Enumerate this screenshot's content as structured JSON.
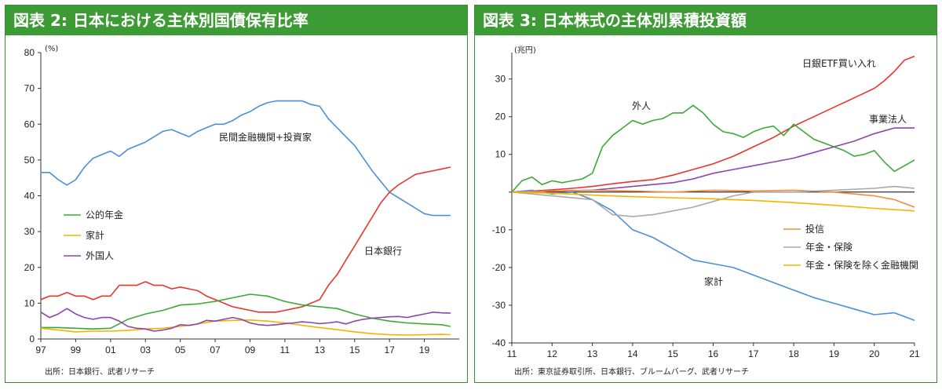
{
  "left": {
    "title": "図表 2: 日本における主体別国債保有比率",
    "unit": "(%)",
    "source": "出所：日本銀行、武者リサーチ",
    "legend": [
      "公的年金",
      "家計",
      "外国人"
    ],
    "labels": {
      "private": "民間金融機関+投資家",
      "boj": "日本銀行"
    },
    "colors": {
      "private": "#4a90d9",
      "boj": "#e8362e",
      "pension": "#3aaa35",
      "household": "#f2b400",
      "foreign": "#8e44ad"
    }
  },
  "right": {
    "title": "図表 3: 日本株式の主体別累積投資額",
    "unit": "(兆円)",
    "source": "出所：東京証券取引所、日本銀行、ブルームバーグ、武者リサーチ",
    "legend": [
      "投信",
      "年金・保険",
      "年金・保険を除く金融機関"
    ],
    "labels": {
      "boj": "日銀ETF買い入れ",
      "foreign": "外人",
      "corp": "事業法人",
      "household": "家計"
    },
    "colors": {
      "boj": "#e8362e",
      "foreign": "#3aaa35",
      "corp": "#8e44ad",
      "household": "#4a90d9",
      "fund": "#f08c3c",
      "pension": "#a8a8a8",
      "fin": "#f2b400"
    }
  },
  "chart_data": [
    {
      "type": "line",
      "title": "図表 2: 日本における主体別国債保有比率",
      "ylabel": "(%)",
      "xlim": [
        1997,
        2021
      ],
      "ylim": [
        0,
        80
      ],
      "xticks": [
        "97",
        "99",
        "01",
        "03",
        "05",
        "07",
        "09",
        "11",
        "13",
        "15",
        "17",
        "19"
      ],
      "yticks": [
        0,
        10,
        20,
        30,
        40,
        50,
        60,
        70,
        80
      ],
      "legend_position": "left-middle",
      "series": [
        {
          "name": "民間金融機関+投資家",
          "color": "#4a90d9",
          "x": [
            1997,
            1997.5,
            1998,
            1998.5,
            1999,
            1999.5,
            2000,
            2000.5,
            2001,
            2001.5,
            2002,
            2002.5,
            2003,
            2003.5,
            2004,
            2004.5,
            2005,
            2005.5,
            2006,
            2006.5,
            2007,
            2007.5,
            2008,
            2008.5,
            2009,
            2009.5,
            2010,
            2010.5,
            2011,
            2011.5,
            2012,
            2012.5,
            2013,
            2013.5,
            2014,
            2014.5,
            2015,
            2015.5,
            2016,
            2016.5,
            2017,
            2017.5,
            2018,
            2018.5,
            2019,
            2019.5,
            2020,
            2020.5
          ],
          "values": [
            46.5,
            46.5,
            44.5,
            43,
            44.5,
            48,
            50.5,
            51.5,
            52.5,
            51,
            53,
            54,
            55,
            56.5,
            58,
            58.5,
            57.5,
            56.5,
            58,
            59,
            60,
            60,
            61,
            62.5,
            63.5,
            65,
            66,
            66.5,
            66.5,
            66.5,
            66.5,
            65.5,
            65,
            61.5,
            59,
            56.5,
            54,
            50.5,
            47,
            44,
            41,
            39.5,
            38,
            36.5,
            35,
            34.5,
            34.5,
            34.5
          ]
        },
        {
          "name": "日本銀行",
          "color": "#e8362e",
          "x": [
            1997,
            1997.5,
            1998,
            1998.5,
            1999,
            1999.5,
            2000,
            2000.5,
            2001,
            2001.5,
            2002,
            2002.5,
            2003,
            2003.5,
            2004,
            2004.5,
            2005,
            2005.5,
            2006,
            2006.5,
            2007,
            2007.5,
            2008,
            2008.5,
            2009,
            2009.5,
            2010,
            2010.5,
            2011,
            2011.5,
            2012,
            2012.5,
            2013,
            2013.5,
            2014,
            2014.5,
            2015,
            2015.5,
            2016,
            2016.5,
            2017,
            2017.5,
            2018,
            2018.5,
            2019,
            2019.5,
            2020,
            2020.5
          ],
          "values": [
            11,
            12,
            12,
            13,
            12,
            12,
            11,
            12,
            12,
            15,
            15,
            15,
            16,
            15,
            15,
            14,
            14.5,
            14,
            13.5,
            12,
            11,
            10,
            9,
            8.5,
            8,
            7.5,
            7.5,
            7.5,
            8,
            8.5,
            9,
            10,
            11,
            15,
            18,
            22,
            26,
            30,
            34,
            38,
            41,
            43,
            44.5,
            46,
            46.5,
            47,
            47.5,
            48
          ]
        },
        {
          "name": "公的年金",
          "color": "#3aaa35",
          "x": [
            1997,
            1998,
            1999,
            2000,
            2001,
            2002,
            2003,
            2004,
            2005,
            2006,
            2007,
            2008,
            2009,
            2010,
            2011,
            2012,
            2013,
            2014,
            2015,
            2016,
            2017,
            2018,
            2019,
            2020,
            2020.5
          ],
          "values": [
            3.2,
            3.2,
            3,
            2.8,
            3,
            5.5,
            7,
            8,
            9.5,
            9.8,
            10.5,
            11.5,
            12.5,
            12,
            10.5,
            9.5,
            9,
            8.5,
            7,
            5.8,
            5,
            4.5,
            4.2,
            4,
            3.5
          ]
        },
        {
          "name": "家計",
          "color": "#f2b400",
          "x": [
            1997,
            1998,
            1999,
            2000,
            2001,
            2002,
            2003,
            2004,
            2005,
            2006,
            2007,
            2008,
            2009,
            2010,
            2011,
            2012,
            2013,
            2014,
            2015,
            2016,
            2017,
            2018,
            2019,
            2020,
            2020.5
          ],
          "values": [
            3,
            2.5,
            2,
            2.2,
            2.2,
            2.4,
            2.8,
            3,
            3.5,
            4.2,
            5,
            5.2,
            5.3,
            5,
            4.5,
            3.8,
            3.2,
            2.6,
            2,
            1.5,
            1.2,
            1.1,
            1.2,
            1.3,
            1.2
          ]
        },
        {
          "name": "外国人",
          "color": "#8e44ad",
          "x": [
            1997,
            1997.5,
            1998,
            1998.5,
            1999,
            1999.5,
            2000,
            2000.5,
            2001,
            2001.5,
            2002,
            2002.5,
            2003,
            2003.5,
            2004,
            2004.5,
            2005,
            2005.5,
            2006,
            2006.5,
            2007,
            2007.5,
            2008,
            2008.5,
            2009,
            2009.5,
            2010,
            2010.5,
            2011,
            2011.5,
            2012,
            2012.5,
            2013,
            2013.5,
            2014,
            2014.5,
            2015,
            2015.5,
            2016,
            2016.5,
            2017,
            2017.5,
            2018,
            2018.5,
            2019,
            2019.5,
            2020,
            2020.5
          ],
          "values": [
            7.5,
            6,
            7,
            8.5,
            7,
            6,
            5.5,
            6,
            6,
            5,
            3.5,
            3,
            2.8,
            2.2,
            2.5,
            3,
            4,
            3.8,
            4.2,
            5.2,
            5,
            5.5,
            6,
            5.5,
            4.5,
            4,
            3.8,
            4,
            4.3,
            4.5,
            4.8,
            4.6,
            4.3,
            4.5,
            4.8,
            4.2,
            5,
            5.5,
            5.8,
            6,
            6.2,
            6.3,
            6,
            6.5,
            7,
            7.5,
            7.3,
            7.2
          ]
        }
      ]
    },
    {
      "type": "line",
      "title": "図表 3: 日本株式の主体別累積投資額",
      "ylabel": "(兆円)",
      "xlim": [
        2011,
        2021
      ],
      "ylim": [
        -40,
        37
      ],
      "xticks": [
        "11",
        "12",
        "13",
        "14",
        "15",
        "16",
        "17",
        "18",
        "19",
        "20",
        "21"
      ],
      "yticks": [
        -40,
        -30,
        -20,
        -10,
        0,
        10,
        20,
        30
      ],
      "legend_position": "right-middle",
      "series": [
        {
          "name": "日銀ETF買い入れ",
          "color": "#e8362e",
          "x": [
            2011,
            2011.5,
            2012,
            2012.5,
            2013,
            2013.5,
            2014,
            2014.5,
            2015,
            2015.5,
            2016,
            2016.5,
            2017,
            2017.5,
            2018,
            2018.5,
            2019,
            2019.5,
            2020,
            2020.25,
            2020.5,
            2020.75,
            2021
          ],
          "values": [
            0,
            0.3,
            0.6,
            1,
            1.5,
            2.2,
            2.8,
            3.3,
            4.5,
            6,
            7.5,
            9.5,
            12,
            14.5,
            17.5,
            20,
            22.5,
            25,
            27.5,
            29.5,
            32,
            35,
            36
          ]
        },
        {
          "name": "外人",
          "color": "#3aaa35",
          "x": [
            2011,
            2011.25,
            2011.5,
            2011.75,
            2012,
            2012.25,
            2012.5,
            2012.75,
            2013,
            2013.25,
            2013.5,
            2013.75,
            2014,
            2014.25,
            2014.5,
            2014.75,
            2015,
            2015.25,
            2015.5,
            2015.75,
            2016,
            2016.25,
            2016.5,
            2016.75,
            2017,
            2017.25,
            2017.5,
            2017.75,
            2018,
            2018.25,
            2018.5,
            2018.75,
            2019,
            2019.25,
            2019.5,
            2019.75,
            2020,
            2020.25,
            2020.5,
            2020.75,
            2021
          ],
          "values": [
            0,
            3,
            4,
            2,
            3,
            2.5,
            3,
            3.5,
            5,
            12,
            15,
            17,
            19,
            18,
            19,
            19.5,
            21,
            21,
            23,
            21,
            18,
            16,
            15.5,
            14.5,
            16,
            17,
            17.5,
            15,
            18,
            16,
            14,
            13,
            12,
            11,
            9.5,
            10,
            11,
            8,
            5.5,
            7,
            8.5
          ]
        },
        {
          "name": "事業法人",
          "color": "#8e44ad",
          "x": [
            2011,
            2012,
            2013,
            2013.5,
            2014,
            2014.5,
            2015,
            2015.5,
            2016,
            2016.5,
            2017,
            2017.5,
            2018,
            2018.5,
            2019,
            2019.5,
            2020,
            2020.5,
            2021
          ],
          "values": [
            0,
            0.3,
            0.5,
            1,
            1.5,
            2,
            2.5,
            3.5,
            5,
            6,
            7,
            8,
            9,
            10.5,
            12,
            13.5,
            15.5,
            17,
            17
          ]
        },
        {
          "name": "家計",
          "color": "#4a90d9",
          "x": [
            2011,
            2011.5,
            2012,
            2012.5,
            2013,
            2013.5,
            2014,
            2014.5,
            2015,
            2015.5,
            2016,
            2016.5,
            2017,
            2017.5,
            2018,
            2018.5,
            2019,
            2019.5,
            2020,
            2020.5,
            2021
          ],
          "values": [
            0,
            0.5,
            -0.5,
            0,
            -2,
            -5,
            -10,
            -12,
            -15,
            -18,
            -19,
            -20,
            -22,
            -24,
            -26,
            -28,
            -29.5,
            -31,
            -32.5,
            -32,
            -34
          ]
        },
        {
          "name": "投信",
          "color": "#f08c3c",
          "x": [
            2011,
            2012,
            2013,
            2014,
            2015,
            2016,
            2017,
            2018,
            2019,
            2019.5,
            2020,
            2020.5,
            2021
          ],
          "values": [
            0,
            0.3,
            0.5,
            0.3,
            0,
            0.5,
            0.3,
            0.5,
            0,
            -0.5,
            -1,
            -2,
            -4
          ]
        },
        {
          "name": "年金・保険",
          "color": "#a8a8a8",
          "x": [
            2011,
            2012,
            2013,
            2013.5,
            2014,
            2014.5,
            2015,
            2015.5,
            2016,
            2016.5,
            2017,
            2018,
            2019,
            2020,
            2020.5,
            2021
          ],
          "values": [
            0,
            -1,
            -2,
            -6,
            -6.5,
            -6,
            -5,
            -4,
            -2.5,
            -1,
            0,
            0,
            0.5,
            1,
            1.5,
            1
          ]
        },
        {
          "name": "年金・保険を除く金融機関",
          "color": "#f2b400",
          "x": [
            2011,
            2012,
            2013,
            2014,
            2015,
            2016,
            2017,
            2018,
            2019,
            2020,
            2021
          ],
          "values": [
            0,
            -0.3,
            -0.8,
            -1.2,
            -1.5,
            -1.8,
            -2.2,
            -2.8,
            -3.5,
            -4.3,
            -5
          ]
        }
      ]
    }
  ]
}
